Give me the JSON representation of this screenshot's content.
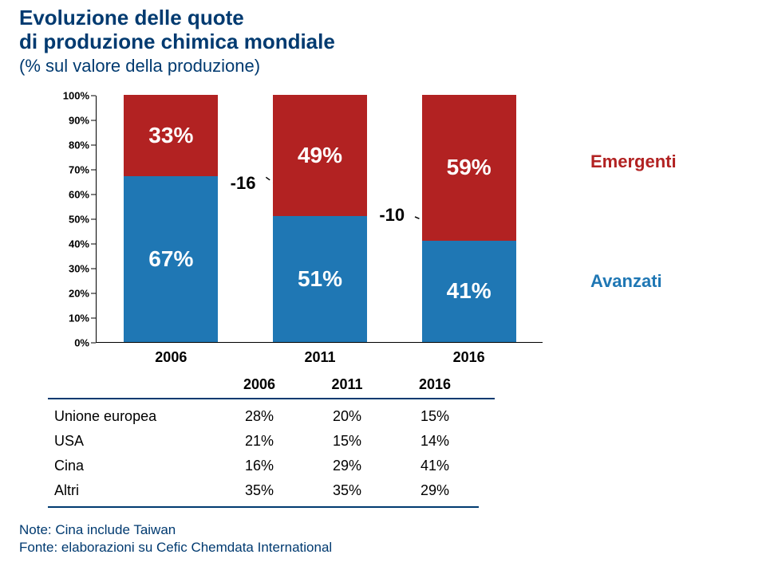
{
  "title": {
    "line1": "Evoluzione delle quote",
    "line2": "di produzione chimica mondiale",
    "subtitle": "(% sul valore della produzione)",
    "color": "#003a70",
    "title_fontsize": 26,
    "subtitle_fontsize": 22
  },
  "chart": {
    "type": "stacked-bar",
    "background_color": "#ffffff",
    "y_axis": {
      "min": 0,
      "max": 100,
      "step": 10,
      "ticks": [
        "0%",
        "10%",
        "20%",
        "30%",
        "40%",
        "50%",
        "60%",
        "70%",
        "80%",
        "90%",
        "100%"
      ],
      "tick_fontsize": 13,
      "tick_weight": "bold",
      "axis_color": "#000000"
    },
    "categories": [
      "2006",
      "2011",
      "2016"
    ],
    "x_label_fontsize": 18,
    "bar_width_pct": 21,
    "series": [
      {
        "name": "Avanzati",
        "color": "#1f77b4",
        "values": [
          67,
          51,
          41
        ]
      },
      {
        "name": "Emergenti",
        "color": "#b22222",
        "values": [
          33,
          49,
          59
        ]
      }
    ],
    "value_label_fontsize": 28,
    "value_label_color": "#ffffff",
    "trend": {
      "line_style": "dashed",
      "line_color": "#000000",
      "annotations": [
        {
          "between": [
            "2006",
            "2011"
          ],
          "text": "-16"
        },
        {
          "between": [
            "2011",
            "2016"
          ],
          "text": "-10"
        }
      ],
      "annotation_fontsize": 22
    },
    "legend": {
      "items": [
        {
          "label": "Emergenti",
          "color": "#b22222"
        },
        {
          "label": "Avanzati",
          "color": "#1f77b4"
        }
      ],
      "fontsize": 22
    }
  },
  "table": {
    "columns": [
      "",
      "2006",
      "2011",
      "2016"
    ],
    "header_fontsize": 18,
    "header_weight": "bold",
    "rule_color": "#003a70",
    "rows": [
      {
        "region": "Unione europea",
        "values": [
          "28%",
          "20%",
          "15%"
        ]
      },
      {
        "region": "USA",
        "values": [
          "21%",
          "15%",
          "14%"
        ]
      },
      {
        "region": "Cina",
        "values": [
          "16%",
          "29%",
          "41%"
        ]
      },
      {
        "region": "Altri",
        "values": [
          "35%",
          "35%",
          "29%"
        ]
      }
    ],
    "cell_fontsize": 18
  },
  "footer": {
    "lines": [
      "Note: Cina include Taiwan",
      "Fonte: elaborazioni su Cefic Chemdata International"
    ],
    "color": "#003a70",
    "fontsize": 17
  }
}
